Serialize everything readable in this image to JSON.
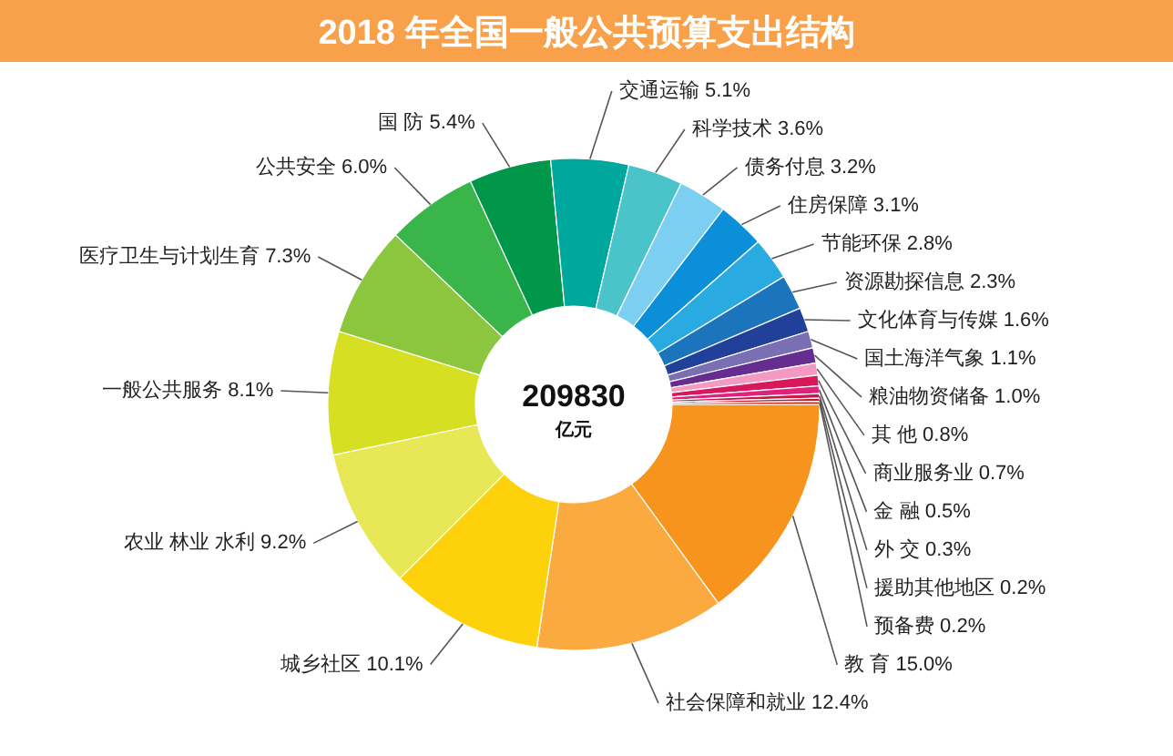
{
  "chart_data": {
    "type": "donut",
    "title": "2018 年全国一般公共预算支出结构",
    "categories": [
      "教 育",
      "社会保障和就业",
      "城乡社区",
      "农业 林业 水利",
      "一般公共服务",
      "医疗卫生与计划生育",
      "公共安全",
      "国 防",
      "交通运输",
      "科学技术",
      "债务付息",
      "住房保障",
      "节能环保",
      "资源勘探信息",
      "文化体育与传媒",
      "国土海洋气象",
      "粮油物资储备",
      "其 他",
      "商业服务业",
      "金 融",
      "外 交",
      "援助其他地区",
      "预备费"
    ],
    "values": [
      15.0,
      12.4,
      10.1,
      9.2,
      8.1,
      7.3,
      6.0,
      5.4,
      5.1,
      3.6,
      3.2,
      3.1,
      2.8,
      2.3,
      1.6,
      1.1,
      1.0,
      0.8,
      0.7,
      0.5,
      0.3,
      0.2,
      0.2
    ],
    "value_labels": [
      "15.0%",
      "12.4%",
      "10.1%",
      "9.2%",
      "8.1%",
      "7.3%",
      "6.0%",
      "5.4%",
      "5.1%",
      "3.6%",
      "3.2%",
      "3.1%",
      "2.8%",
      "2.3%",
      "1.6%",
      "1.1%",
      "1.0%",
      "0.8%",
      "0.7%",
      "0.5%",
      "0.3%",
      "0.2%",
      "0.2%"
    ],
    "colors": [
      "#f7941d",
      "#fbaa3f",
      "#fdd20a",
      "#e8e857",
      "#d7df23",
      "#8cc63f",
      "#3ab54a",
      "#00974b",
      "#00a79d",
      "#4bc4c9",
      "#7dcff2",
      "#0a8fd8",
      "#29aae1",
      "#1c75bc",
      "#21409a",
      "#7a6fb3",
      "#662d91",
      "#f49ac2",
      "#d7195b",
      "#e0237a",
      "#c8174b",
      "#be1e2d",
      "#c0392b"
    ],
    "annotations": [
      "209830",
      "亿元"
    ]
  }
}
